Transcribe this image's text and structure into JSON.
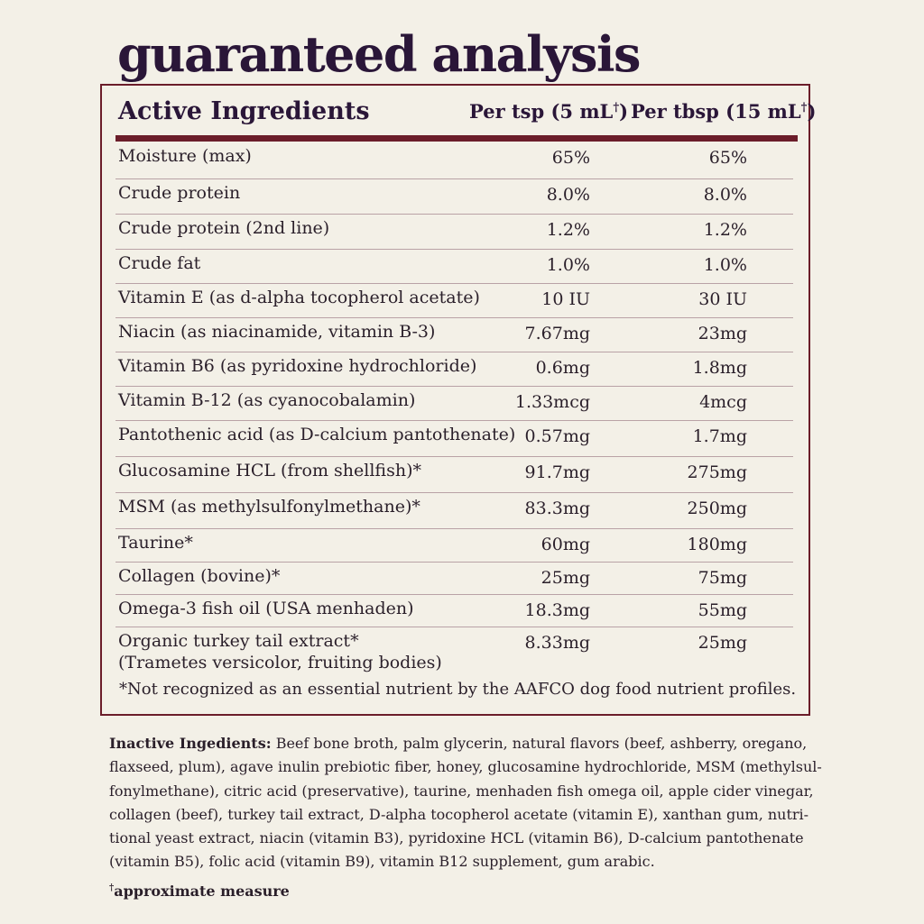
{
  "title": "guaranteed analysis",
  "table": {
    "headers": {
      "ingredient": "Active Ingredients",
      "per_tsp": "Per tsp (5 mL",
      "per_tbsp": "Per tbsp (15 mL",
      "dagger": "†",
      "close": ")"
    },
    "rows": [
      {
        "name": "Moisture (max)",
        "tsp": "65%",
        "tbsp": "65%"
      },
      {
        "name": "Crude protein",
        "tsp": "8.0%",
        "tbsp": "8.0%"
      },
      {
        "name": "Crude protein (2nd line)",
        "tsp": "1.2%",
        "tbsp": "1.2%"
      },
      {
        "name": "Crude fat",
        "tsp": "1.0%",
        "tbsp": "1.0%"
      },
      {
        "name": "Vitamin E (as d-alpha tocopherol acetate)",
        "tsp": "10 IU",
        "tbsp": "30 IU"
      },
      {
        "name": "Niacin (as niacinamide, vitamin B-3)",
        "tsp": "7.67mg",
        "tbsp": "23mg"
      },
      {
        "name": "Vitamin B6 (as pyridoxine hydrochloride)",
        "tsp": "0.6mg",
        "tbsp": "1.8mg"
      },
      {
        "name": "Vitamin B-12 (as cyanocobalamin)",
        "tsp": "1.33mcg",
        "tbsp": "4mcg"
      },
      {
        "name": "Pantothenic acid (as D-calcium pantothenate)",
        "tsp": "0.57mg",
        "tbsp": "1.7mg"
      },
      {
        "name": "Glucosamine HCL (from shellfish)*",
        "tsp": "91.7mg",
        "tbsp": "275mg"
      },
      {
        "name": "MSM (as methylsulfonylmethane)*",
        "tsp": "83.3mg",
        "tbsp": "250mg"
      },
      {
        "name": "Taurine*",
        "tsp": "60mg",
        "tbsp": "180mg"
      },
      {
        "name": "Collagen (bovine)*",
        "tsp": "25mg",
        "tbsp": "75mg"
      },
      {
        "name": "Omega-3 fish oil (USA menhaden)",
        "tsp": "18.3mg",
        "tbsp": "55mg"
      },
      {
        "name": "Organic turkey tail extract*",
        "name2": "(Trametes versicolor, fruiting bodies)",
        "tsp": "8.33mg",
        "tbsp": "25mg"
      }
    ],
    "footnote": "*Not recognized as an essential nutrient by the AAFCO dog food nutrient profiles."
  },
  "inactive": {
    "label": "Inactive Ingedients:",
    "lines": [
      " Beef bone broth,  palm glycerin, natural flavors (beef, ashberry, oregano,",
      "flaxseed, plum), agave inulin prebiotic fiber, honey, glucosamine hydrochloride, MSM (methylsul-",
      "fonylmethane), citric acid (preservative), taurine, menhaden fish omega oil, apple cider vinegar,",
      "collagen (beef), turkey tail extract, D-alpha tocopherol acetate (vitamin E), xanthan gum, nutri-",
      "tional yeast extract, niacin (vitamin B3), pyridoxine HCL (vitamin B6), D-calcium pantothenate",
      "(vitamin B5), folic acid (vitamin B9), vitamin B12 supplement, gum arabic."
    ]
  },
  "approx": {
    "dagger": "†",
    "text": "approximate measure"
  },
  "colors": {
    "background": "#f3f0e7",
    "title": "#2a1638",
    "border": "#6b1d2a"
  }
}
